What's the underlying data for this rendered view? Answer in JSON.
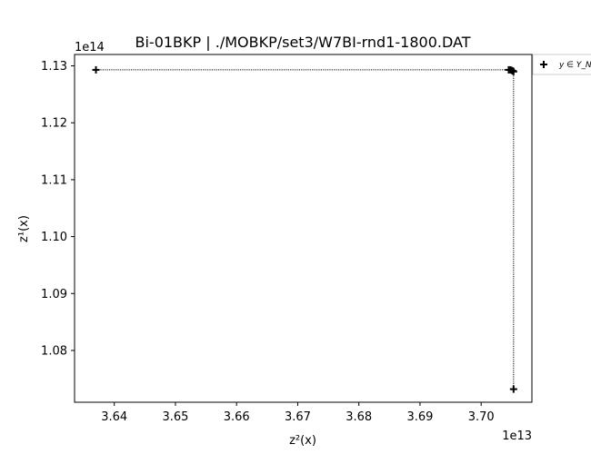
{
  "chart_data": {
    "type": "scatter",
    "title": "Bi-01BKP | ./MOBKP/set3/W7BI-rnd1-1800.DAT",
    "xlabel": "z²(x)",
    "ylabel": "z¹(x)",
    "x_multiplier": "1e13",
    "y_multiplier": "1e14",
    "xlim": [
      3.6335,
      3.7083
    ],
    "ylim": [
      1.0709,
      1.132
    ],
    "x_ticks": [
      3.64,
      3.65,
      3.66,
      3.67,
      3.68,
      3.69,
      3.7
    ],
    "x_tick_labels": [
      "3.64",
      "3.65",
      "3.66",
      "3.67",
      "3.68",
      "3.69",
      "3.70"
    ],
    "y_ticks": [
      1.08,
      1.09,
      1.1,
      1.11,
      1.12,
      1.13
    ],
    "y_tick_labels": [
      "1.08",
      "1.09",
      "1.10",
      "1.11",
      "1.12",
      "1.13"
    ],
    "grid": false,
    "legend_position": "outside-top-right",
    "series": [
      {
        "name": "y ∈ Y_N",
        "marker": "plus",
        "color": "#000000",
        "connector": "dotted-steps",
        "points": [
          {
            "x": 3.637,
            "y": 1.1293
          },
          {
            "x": 3.7045,
            "y": 1.1293
          },
          {
            "x": 3.7048,
            "y": 1.1293
          },
          {
            "x": 3.705,
            "y": 1.1292
          },
          {
            "x": 3.7052,
            "y": 1.1291
          },
          {
            "x": 3.7053,
            "y": 1.129
          },
          {
            "x": 3.7053,
            "y": 1.0732
          }
        ]
      }
    ]
  }
}
